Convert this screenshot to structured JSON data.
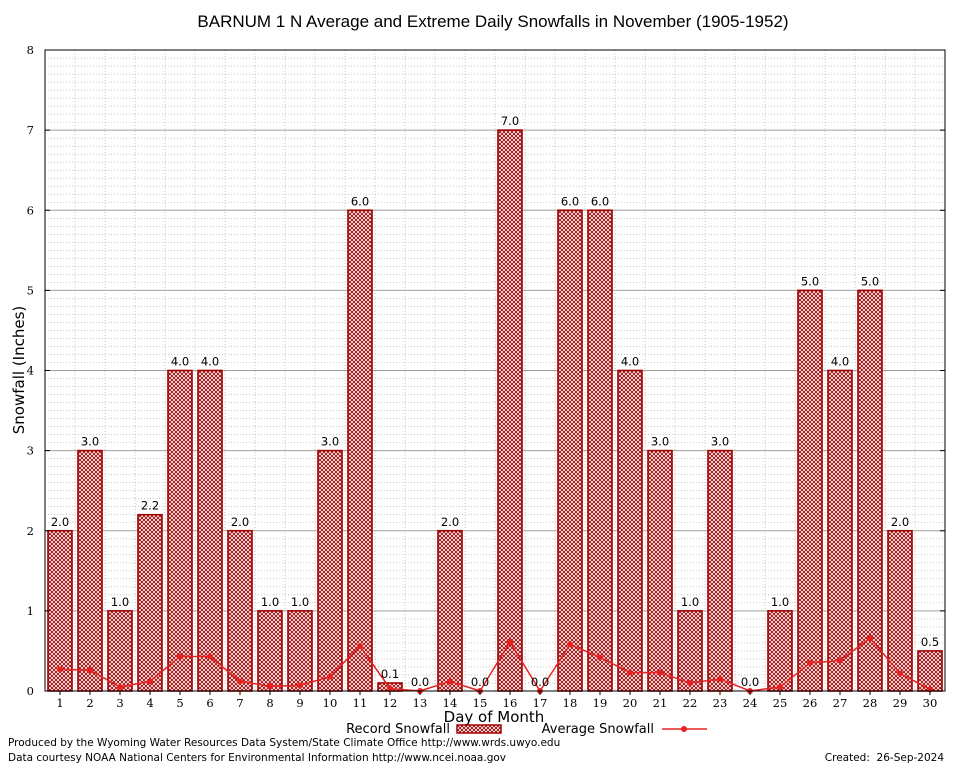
{
  "chart_data": {
    "type": "bar",
    "title": "BARNUM 1 N Average and Extreme Daily Snowfalls in November (1905-1952)",
    "xlabel": "Day of Month",
    "ylabel": "Snowfall (Inches)",
    "ylim": [
      0,
      8
    ],
    "yticks": [
      "0",
      "1",
      "2",
      "3",
      "4",
      "5",
      "6",
      "7",
      "8"
    ],
    "categories": [
      "1",
      "2",
      "3",
      "4",
      "5",
      "6",
      "7",
      "8",
      "9",
      "10",
      "11",
      "12",
      "13",
      "14",
      "15",
      "16",
      "17",
      "18",
      "19",
      "20",
      "21",
      "22",
      "23",
      "24",
      "25",
      "26",
      "27",
      "28",
      "29",
      "30"
    ],
    "series": [
      {
        "name": "Record Snowfall",
        "type": "bar",
        "values": [
          2.0,
          3.0,
          1.0,
          2.2,
          4.0,
          4.0,
          2.0,
          1.0,
          1.0,
          3.0,
          6.0,
          0.1,
          0.0,
          2.0,
          0.0,
          7.0,
          0.0,
          6.0,
          6.0,
          4.0,
          3.0,
          1.0,
          3.0,
          0.0,
          1.0,
          5.0,
          4.0,
          5.0,
          2.0,
          0.5
        ],
        "labels": [
          "2.0",
          "3.0",
          "1.0",
          "2.2",
          "4.0",
          "4.0",
          "2.0",
          "1.0",
          "1.0",
          "3.0",
          "6.0",
          "0.1",
          "0.0",
          "2.0",
          "0.0",
          "7.0",
          "0.0",
          "6.0",
          "6.0",
          "4.0",
          "3.0",
          "1.0",
          "3.0",
          "0.0",
          "1.0",
          "5.0",
          "4.0",
          "5.0",
          "2.0",
          "0.5"
        ]
      },
      {
        "name": "Average Snowfall",
        "type": "line",
        "values": [
          0.27,
          0.26,
          0.05,
          0.12,
          0.43,
          0.43,
          0.12,
          0.06,
          0.07,
          0.18,
          0.56,
          0.03,
          0.0,
          0.12,
          0.0,
          0.61,
          0.0,
          0.58,
          0.42,
          0.23,
          0.23,
          0.1,
          0.15,
          0.0,
          0.05,
          0.35,
          0.38,
          0.66,
          0.22,
          0.02
        ]
      }
    ],
    "grid": true,
    "legend": "bottom-center",
    "colors": {
      "bar_edge": "#a00000",
      "bar_fill": "#c89090",
      "line": "#e82020",
      "grid": "#a0a0a0"
    }
  },
  "footer": {
    "produced_by": "Produced by the Wyoming Water Resources Data System/State Climate Office http://www.wrds.uwyo.edu",
    "courtesy": "Data courtesy NOAA National Centers for Environmental Information http://www.ncei.noaa.gov",
    "created": "Created:  26-Sep-2024"
  }
}
